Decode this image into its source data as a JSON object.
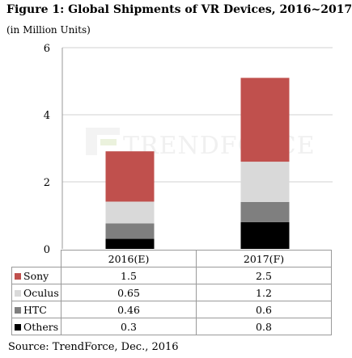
{
  "title": "Figure 1: Global Shipments of VR Devices, 2016~2017",
  "subtitle": "(in Million Units)",
  "source": "Source: TrendForce, Dec., 2016",
  "watermark_text": "TRENDFORCE",
  "chart_data": {
    "type": "bar",
    "stacked": true,
    "categories": [
      "2016(E)",
      "2017(F)"
    ],
    "series": [
      {
        "name": "Others",
        "color": "#000000",
        "values": [
          0.3,
          0.8
        ],
        "labels": [
          "0.3",
          "0.8"
        ]
      },
      {
        "name": "HTC",
        "color": "#7f7f7f",
        "values": [
          0.46,
          0.6
        ],
        "labels": [
          "0.46",
          "0.6"
        ]
      },
      {
        "name": "Oculus",
        "color": "#d9d9d9",
        "values": [
          0.65,
          1.2
        ],
        "labels": [
          "0.65",
          "1.2"
        ]
      },
      {
        "name": "Sony",
        "color": "#c0504d",
        "values": [
          1.5,
          2.5
        ],
        "labels": [
          "1.5",
          "2.5"
        ]
      }
    ],
    "table_order": [
      "Sony",
      "Oculus",
      "HTC",
      "Others"
    ],
    "yticks": [
      "0",
      "2",
      "4",
      "6"
    ],
    "ylim": [
      0,
      6
    ],
    "grid": true,
    "legend": "data table below chart"
  }
}
